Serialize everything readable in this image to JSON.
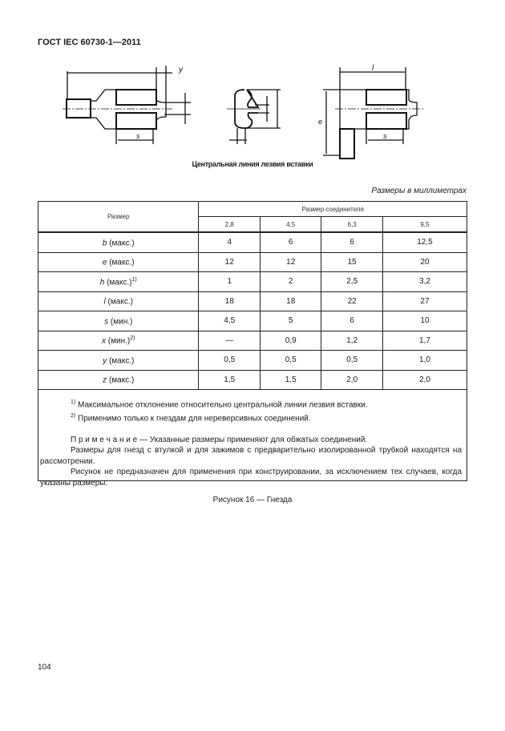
{
  "header": "ГОСТ IEC 60730-1—2011",
  "figure": {
    "labels": {
      "left_y": "y",
      "left_s": "s",
      "right_l": "l",
      "right_e": "e",
      "right_s": "s"
    },
    "caption": "Центральная линия лезвия вставки"
  },
  "units_note": "Размеры в миллиметрах",
  "table": {
    "col_header": "Размер",
    "group_header": "Размер соединителя",
    "sizes": [
      "2,8",
      "4,5",
      "6,3",
      "9,5"
    ],
    "rows": [
      {
        "sym": "b",
        "qual": " (макс.)",
        "sup": "",
        "values": [
          "4",
          "6",
          "6",
          "12,5"
        ]
      },
      {
        "sym": "e",
        "qual": " (макс.)",
        "sup": "",
        "values": [
          "12",
          "12",
          "15",
          "20"
        ]
      },
      {
        "sym": "h",
        "qual": " (макс.)",
        "sup": "1)",
        "values": [
          "1",
          "2",
          "2,5",
          "3,2"
        ]
      },
      {
        "sym": "l",
        "qual": " (макс.)",
        "sup": "",
        "values": [
          "18",
          "18",
          "22",
          "27"
        ]
      },
      {
        "sym": "s",
        "qual": " (мин.)",
        "sup": "",
        "values": [
          "4,5",
          "5",
          "6",
          "10"
        ]
      },
      {
        "sym": "x",
        "qual": " (мин.)",
        "sup": "2)",
        "values": [
          "—",
          "0,9",
          "1,2",
          "1,7"
        ]
      },
      {
        "sym": "y",
        "qual": " (макс.)",
        "sup": "",
        "values": [
          "0,5",
          "0,5",
          "0,5",
          "1,0"
        ]
      },
      {
        "sym": "z",
        "qual": " (макс.)",
        "sup": "",
        "values": [
          "1,5",
          "1,5",
          "2,0",
          "2,0"
        ]
      }
    ]
  },
  "notes": {
    "fn1_mark": "1)",
    "fn1": "Максимальное отклонение относительно центральной линии лезвия вставки.",
    "fn2_mark": "2)",
    "fn2": "Применимо только к гнездам для нереверсивных соединений.",
    "note_label": "П р и м е ч а н и е",
    "note_text": " — Указанные размеры применяют для обжатых соединений.",
    "p2": "Размеры для гнезд с втулкой и для зажимов с предварительно изолированной трубкой находятся на рассмотрении.",
    "p3": "Рисунок не предназначен для применения при конструировании, за исключением тех случаев, когда указаны размеры."
  },
  "figure_title": "Рисунок 16 — Гнезда",
  "page_number": "104"
}
